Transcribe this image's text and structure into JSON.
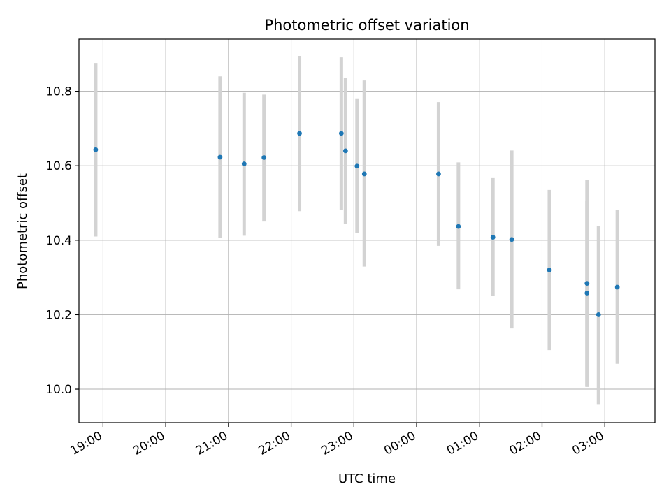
{
  "chart_data": {
    "type": "scatter",
    "title": "Photometric offset variation",
    "xlabel": "UTC time",
    "ylabel": "Photometric offset",
    "x_tick_labels": [
      "19:00",
      "20:00",
      "21:00",
      "22:00",
      "23:00",
      "00:00",
      "01:00",
      "02:00",
      "03:00"
    ],
    "y_ticks": [
      10.0,
      10.2,
      10.4,
      10.6,
      10.8
    ],
    "y_tick_labels": [
      "10.0",
      "10.2",
      "10.4",
      "10.6",
      "10.8"
    ],
    "xlim": [
      "18:37",
      "03:48"
    ],
    "ylim": [
      9.91,
      10.94
    ],
    "grid": true,
    "colors": {
      "points": "#1f77b4",
      "error_bars": "#d3d3d3",
      "grid": "#b0b0b0"
    },
    "points": [
      {
        "x": "18:53",
        "y": 10.643,
        "err_low": 10.41,
        "err_high": 10.876
      },
      {
        "x": "20:52",
        "y": 10.623,
        "err_low": 10.406,
        "err_high": 10.84
      },
      {
        "x": "21:15",
        "y": 10.605,
        "err_low": 10.412,
        "err_high": 10.796
      },
      {
        "x": "21:34",
        "y": 10.622,
        "err_low": 10.45,
        "err_high": 10.791
      },
      {
        "x": "22:08",
        "y": 10.687,
        "err_low": 10.478,
        "err_high": 10.895
      },
      {
        "x": "22:48",
        "y": 10.687,
        "err_low": 10.482,
        "err_high": 10.891
      },
      {
        "x": "22:52",
        "y": 10.64,
        "err_low": 10.444,
        "err_high": 10.836
      },
      {
        "x": "23:03",
        "y": 10.599,
        "err_low": 10.419,
        "err_high": 10.781
      },
      {
        "x": "23:10",
        "y": 10.578,
        "err_low": 10.329,
        "err_high": 10.829
      },
      {
        "x": "00:21",
        "y": 10.578,
        "err_low": 10.385,
        "err_high": 10.771
      },
      {
        "x": "00:40",
        "y": 10.437,
        "err_low": 10.268,
        "err_high": 10.609
      },
      {
        "x": "01:13",
        "y": 10.408,
        "err_low": 10.251,
        "err_high": 10.567
      },
      {
        "x": "01:31",
        "y": 10.402,
        "err_low": 10.163,
        "err_high": 10.641
      },
      {
        "x": "02:07",
        "y": 10.32,
        "err_low": 10.105,
        "err_high": 10.535
      },
      {
        "x": "02:43",
        "y": 10.284,
        "err_low": 10.006,
        "err_high": 10.562
      },
      {
        "x": "02:43",
        "y": 10.258,
        "err_low": 10.008,
        "err_high": 10.505
      },
      {
        "x": "02:54",
        "y": 10.2,
        "err_low": 9.958,
        "err_high": 10.439
      },
      {
        "x": "03:12",
        "y": 10.274,
        "err_low": 10.068,
        "err_high": 10.482
      }
    ]
  }
}
